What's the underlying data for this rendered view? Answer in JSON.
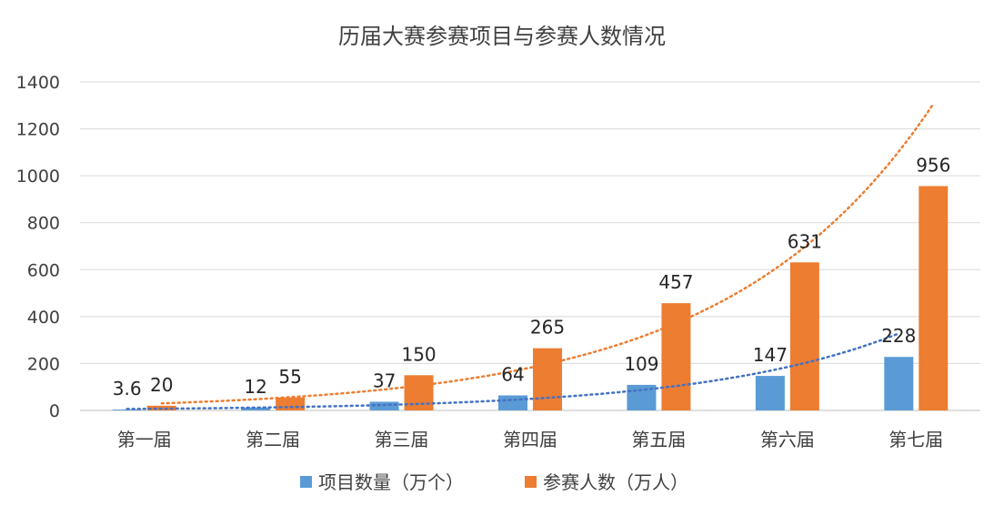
{
  "chart_data": {
    "type": "bar",
    "title": "历届大赛参赛项目与参赛人数情况",
    "categories": [
      "第一届",
      "第二届",
      "第三届",
      "第四届",
      "第五届",
      "第六届",
      "第七届"
    ],
    "series": [
      {
        "name": "项目数量（万个）",
        "values": [
          3.6,
          12,
          37,
          64,
          109,
          147,
          228
        ],
        "labels": [
          "3.6",
          "12",
          "37",
          "64",
          "109",
          "147",
          "228"
        ],
        "color": "#5B9BD5"
      },
      {
        "name": "参赛人数（万人）",
        "values": [
          20,
          55,
          150,
          265,
          457,
          631,
          956
        ],
        "labels": [
          "20",
          "55",
          "150",
          "265",
          "457",
          "631",
          "956"
        ],
        "color": "#ED7D31"
      }
    ],
    "trendlines": [
      {
        "series": "项目数量（万个）",
        "kind": "exponential",
        "style": "dotted",
        "color": "#4472C4"
      },
      {
        "series": "参赛人数（万人）",
        "kind": "exponential",
        "style": "dotted",
        "color": "#ED7D31"
      }
    ],
    "ylim": [
      0,
      1400
    ],
    "yticks": [
      0,
      200,
      400,
      600,
      800,
      1000,
      1200,
      1400
    ],
    "ytick_labels": [
      "0",
      "200",
      "400",
      "600",
      "800",
      "1000",
      "1200",
      "1400"
    ],
    "grid": true,
    "legend_position": "bottom"
  }
}
